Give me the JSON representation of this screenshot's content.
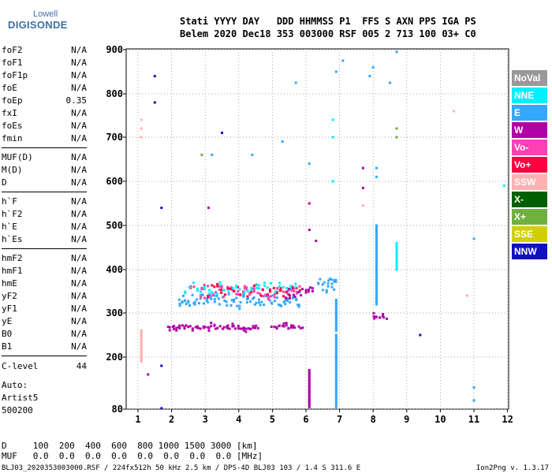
{
  "logo": {
    "top": "Lowell",
    "main": "DIGISONDE"
  },
  "header": {
    "line1": "Stati YYYY DAY   DDD HHMMSS P1  FFS S AXN PPS IGA PS",
    "line2": "Belem 2020 Dec18 353 003000 RSF 005 2 713 100 03+ C0"
  },
  "params_group1": [
    {
      "name": "foF2",
      "value": "N/A"
    },
    {
      "name": "foF1",
      "value": "N/A"
    },
    {
      "name": "foF1p",
      "value": "N/A"
    },
    {
      "name": "foE",
      "value": "N/A"
    },
    {
      "name": "foEp",
      "value": "0.35"
    },
    {
      "name": "fxI",
      "value": "N/A"
    },
    {
      "name": "foEs",
      "value": "N/A"
    },
    {
      "name": "fmin",
      "value": "N/A"
    }
  ],
  "params_group2": [
    {
      "name": "MUF(D)",
      "value": "N/A"
    },
    {
      "name": "M(D)",
      "value": "N/A"
    },
    {
      "name": "D",
      "value": "N/A"
    }
  ],
  "params_group3": [
    {
      "name": "h`F",
      "value": "N/A"
    },
    {
      "name": "h`F2",
      "value": "N/A"
    },
    {
      "name": "h`E",
      "value": "N/A"
    },
    {
      "name": "h`Es",
      "value": "N/A"
    }
  ],
  "params_group4": [
    {
      "name": "hmF2",
      "value": "N/A"
    },
    {
      "name": "hmF1",
      "value": "N/A"
    },
    {
      "name": "hmE",
      "value": "N/A"
    },
    {
      "name": "yF2",
      "value": "N/A"
    },
    {
      "name": "yF1",
      "value": "N/A"
    },
    {
      "name": "yE",
      "value": "N/A"
    },
    {
      "name": "B0",
      "value": "N/A"
    },
    {
      "name": "B1",
      "value": "N/A"
    }
  ],
  "clevel": {
    "name": "C-level",
    "value": "44"
  },
  "auto": {
    "line1": "Auto:",
    "line2": "Artist5",
    "line3": "500200"
  },
  "footer": {
    "d_row": "D     100  200  400  600  800 1000 1500 3000 [km]",
    "muf_row": "MUF   0.0  0.0  0.0  0.0  0.0  0.0  0.0  0.0 [MHz]",
    "info": "BLJ03_2020353003000.RSF / 224fx512h 50 kHz 2.5 km / DPS-4D BLJ03 103 / 1.4 S 311.6 E",
    "version": "Ion2Png v. 1.3.17"
  },
  "legend": [
    {
      "label": "NoVal",
      "color": "#999999"
    },
    {
      "label": "NNE",
      "color": "#00f0ff"
    },
    {
      "label": "E",
      "color": "#33a8ff"
    },
    {
      "label": "W",
      "color": "#b000a8"
    },
    {
      "label": "Vo-",
      "color": "#ff40b0"
    },
    {
      "label": "Vo+",
      "color": "#ff0040"
    },
    {
      "label": "SSW",
      "color": "#ffb0b0"
    },
    {
      "label": "X-",
      "color": "#006000"
    },
    {
      "label": "X+",
      "color": "#70b040"
    },
    {
      "label": "SSE",
      "color": "#d0d000"
    },
    {
      "label": "NNW",
      "color": "#1010c0"
    }
  ],
  "chart_data": {
    "type": "scatter",
    "xlim": [
      0.5,
      12
    ],
    "ylim": [
      80,
      900
    ],
    "x_ticks": [
      1,
      2,
      3,
      4,
      5,
      6,
      7,
      8,
      9,
      10,
      11,
      12
    ],
    "y_ticks": [
      80,
      200,
      300,
      400,
      500,
      600,
      700,
      800,
      900
    ],
    "grid": "dotted",
    "tick_labels_x": [
      "1",
      "2",
      "3",
      "4",
      "5",
      "6",
      "7",
      "8",
      "9",
      "10",
      "11",
      "12"
    ],
    "tick_labels_y": [
      "80",
      "200",
      "300",
      "400",
      "500",
      "600",
      "700",
      "800",
      "900"
    ],
    "bands": [
      {
        "color": "#b000a8",
        "x_from": 1.9,
        "x_to": 4.6,
        "y": 268,
        "count": 45
      },
      {
        "color": "#b000a8",
        "x_from": 5.0,
        "x_to": 5.9,
        "y": 268,
        "count": 14
      },
      {
        "color": "#33a8ff",
        "x_from": 2.2,
        "x_to": 5.8,
        "y": 330,
        "count": 70
      },
      {
        "color": "#ff40b0",
        "x_from": 2.6,
        "x_to": 5.8,
        "y": 348,
        "count": 40
      },
      {
        "color": "#ff0040",
        "x_from": 3.0,
        "x_to": 5.8,
        "y": 352,
        "count": 30
      },
      {
        "color": "#00f0ff",
        "x_from": 2.4,
        "x_to": 5.8,
        "y": 358,
        "count": 30
      },
      {
        "color": "#b000a8",
        "x_from": 5.4,
        "x_to": 6.2,
        "y": 345,
        "count": 12
      },
      {
        "color": "#33a8ff",
        "x_from": 6.4,
        "x_to": 6.9,
        "y": 365,
        "count": 14
      },
      {
        "color": "#b000a8",
        "x_from": 8.0,
        "x_to": 8.4,
        "y": 290,
        "count": 8
      }
    ],
    "points": [
      {
        "x": 1.1,
        "y": 720,
        "c": "#ffb0b0"
      },
      {
        "x": 1.1,
        "y": 740,
        "c": "#ffb0b0"
      },
      {
        "x": 1.1,
        "y": 700,
        "c": "#ffb0b0"
      },
      {
        "x": 1.5,
        "y": 840,
        "c": "#1010c0"
      },
      {
        "x": 1.5,
        "y": 780,
        "c": "#1010c0"
      },
      {
        "x": 1.7,
        "y": 540,
        "c": "#1010c0"
      },
      {
        "x": 1.7,
        "y": 180,
        "c": "#1010c0"
      },
      {
        "x": 1.3,
        "y": 160,
        "c": "#b000a8"
      },
      {
        "x": 1.7,
        "y": 82,
        "c": "#1010c0"
      },
      {
        "x": 3.5,
        "y": 710,
        "c": "#1010c0"
      },
      {
        "x": 3.1,
        "y": 540,
        "c": "#b000a8"
      },
      {
        "x": 2.9,
        "y": 660,
        "c": "#70b040"
      },
      {
        "x": 5.3,
        "y": 690,
        "c": "#33a8ff"
      },
      {
        "x": 5.7,
        "y": 825,
        "c": "#33a8ff"
      },
      {
        "x": 6.1,
        "y": 640,
        "c": "#33a8ff"
      },
      {
        "x": 6.1,
        "y": 550,
        "c": "#b000a8"
      },
      {
        "x": 6.1,
        "y": 490,
        "c": "#b000a8"
      },
      {
        "x": 6.1,
        "y": 120,
        "c": "#b000a8"
      },
      {
        "x": 6.1,
        "y": 100,
        "c": "#b000a8"
      },
      {
        "x": 6.3,
        "y": 465,
        "c": "#b000a8"
      },
      {
        "x": 6.8,
        "y": 700,
        "c": "#00f0ff"
      },
      {
        "x": 6.8,
        "y": 740,
        "c": "#00f0ff"
      },
      {
        "x": 6.8,
        "y": 600,
        "c": "#00f0ff"
      },
      {
        "x": 6.9,
        "y": 850,
        "c": "#33a8ff"
      },
      {
        "x": 7.1,
        "y": 875,
        "c": "#33a8ff"
      },
      {
        "x": 7.7,
        "y": 630,
        "c": "#b000a8"
      },
      {
        "x": 7.7,
        "y": 585,
        "c": "#b000a8"
      },
      {
        "x": 7.7,
        "y": 545,
        "c": "#ffb0b0"
      },
      {
        "x": 7.9,
        "y": 840,
        "c": "#33a8ff"
      },
      {
        "x": 8.0,
        "y": 860,
        "c": "#33a8ff"
      },
      {
        "x": 8.1,
        "y": 630,
        "c": "#33a8ff"
      },
      {
        "x": 8.1,
        "y": 610,
        "c": "#33a8ff"
      },
      {
        "x": 8.5,
        "y": 825,
        "c": "#33a8ff"
      },
      {
        "x": 8.7,
        "y": 895,
        "c": "#33a8ff"
      },
      {
        "x": 8.7,
        "y": 720,
        "c": "#70b040"
      },
      {
        "x": 8.7,
        "y": 700,
        "c": "#70b040"
      },
      {
        "x": 9.4,
        "y": 250,
        "c": "#1010c0"
      },
      {
        "x": 10.4,
        "y": 760,
        "c": "#ffb0b0"
      },
      {
        "x": 10.8,
        "y": 340,
        "c": "#ffb0b0"
      },
      {
        "x": 11.0,
        "y": 470,
        "c": "#33a8ff"
      },
      {
        "x": 11.0,
        "y": 130,
        "c": "#33a8ff"
      },
      {
        "x": 11.0,
        "y": 100,
        "c": "#33a8ff"
      },
      {
        "x": 11.9,
        "y": 590,
        "c": "#00f0ff"
      },
      {
        "x": 4.4,
        "y": 660,
        "c": "#33a8ff"
      },
      {
        "x": 3.2,
        "y": 660,
        "c": "#33a8ff"
      }
    ],
    "columns": [
      {
        "x": 6.9,
        "y_from": 85,
        "y_to": 250,
        "c": "#33a8ff"
      },
      {
        "x": 6.9,
        "y_from": 260,
        "y_to": 330,
        "c": "#33a8ff"
      },
      {
        "x": 8.1,
        "y_from": 320,
        "y_to": 500,
        "c": "#33a8ff"
      },
      {
        "x": 8.7,
        "y_from": 400,
        "y_to": 460,
        "c": "#00f0ff"
      },
      {
        "x": 6.1,
        "y_from": 85,
        "y_to": 170,
        "c": "#b000a8"
      },
      {
        "x": 1.1,
        "y_from": 190,
        "y_to": 260,
        "c": "#ffb0b0"
      }
    ]
  }
}
